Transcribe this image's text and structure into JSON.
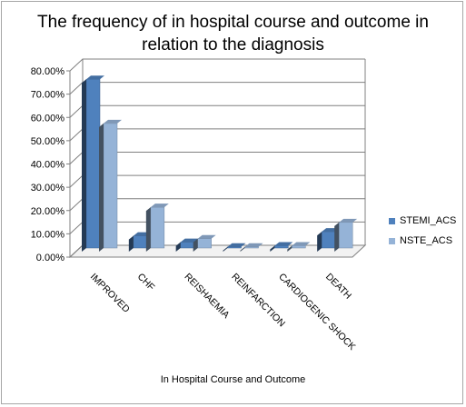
{
  "chart_data": {
    "type": "bar",
    "title_line1": "The frequency of in hospital course and outcome in",
    "title_line2": "relation to the diagnosis",
    "xlabel": "In Hospital Course and Outcome",
    "categories": [
      "IMPROVED",
      "CHF",
      "REISHAEMIA",
      "REINFARCTION",
      "CARDIOGENIC SHOCK",
      "DEATH"
    ],
    "y_ticks": [
      "0.00%",
      "10.00%",
      "20.00%",
      "30.00%",
      "40.00%",
      "50.00%",
      "60.00%",
      "70.00%",
      "80.00%"
    ],
    "ylim": [
      0,
      80
    ],
    "grid": true,
    "legend_position": "right",
    "series": [
      {
        "name": "STEMI_ACS",
        "color": "#4f81bd",
        "values": [
          72.5,
          5.2,
          2.5,
          0.5,
          1.0,
          7.0
        ]
      },
      {
        "name": "NSTE_ACS",
        "color": "#95b3d7",
        "values": [
          53.5,
          17.5,
          4.0,
          0.5,
          1.0,
          11.0
        ]
      }
    ]
  }
}
